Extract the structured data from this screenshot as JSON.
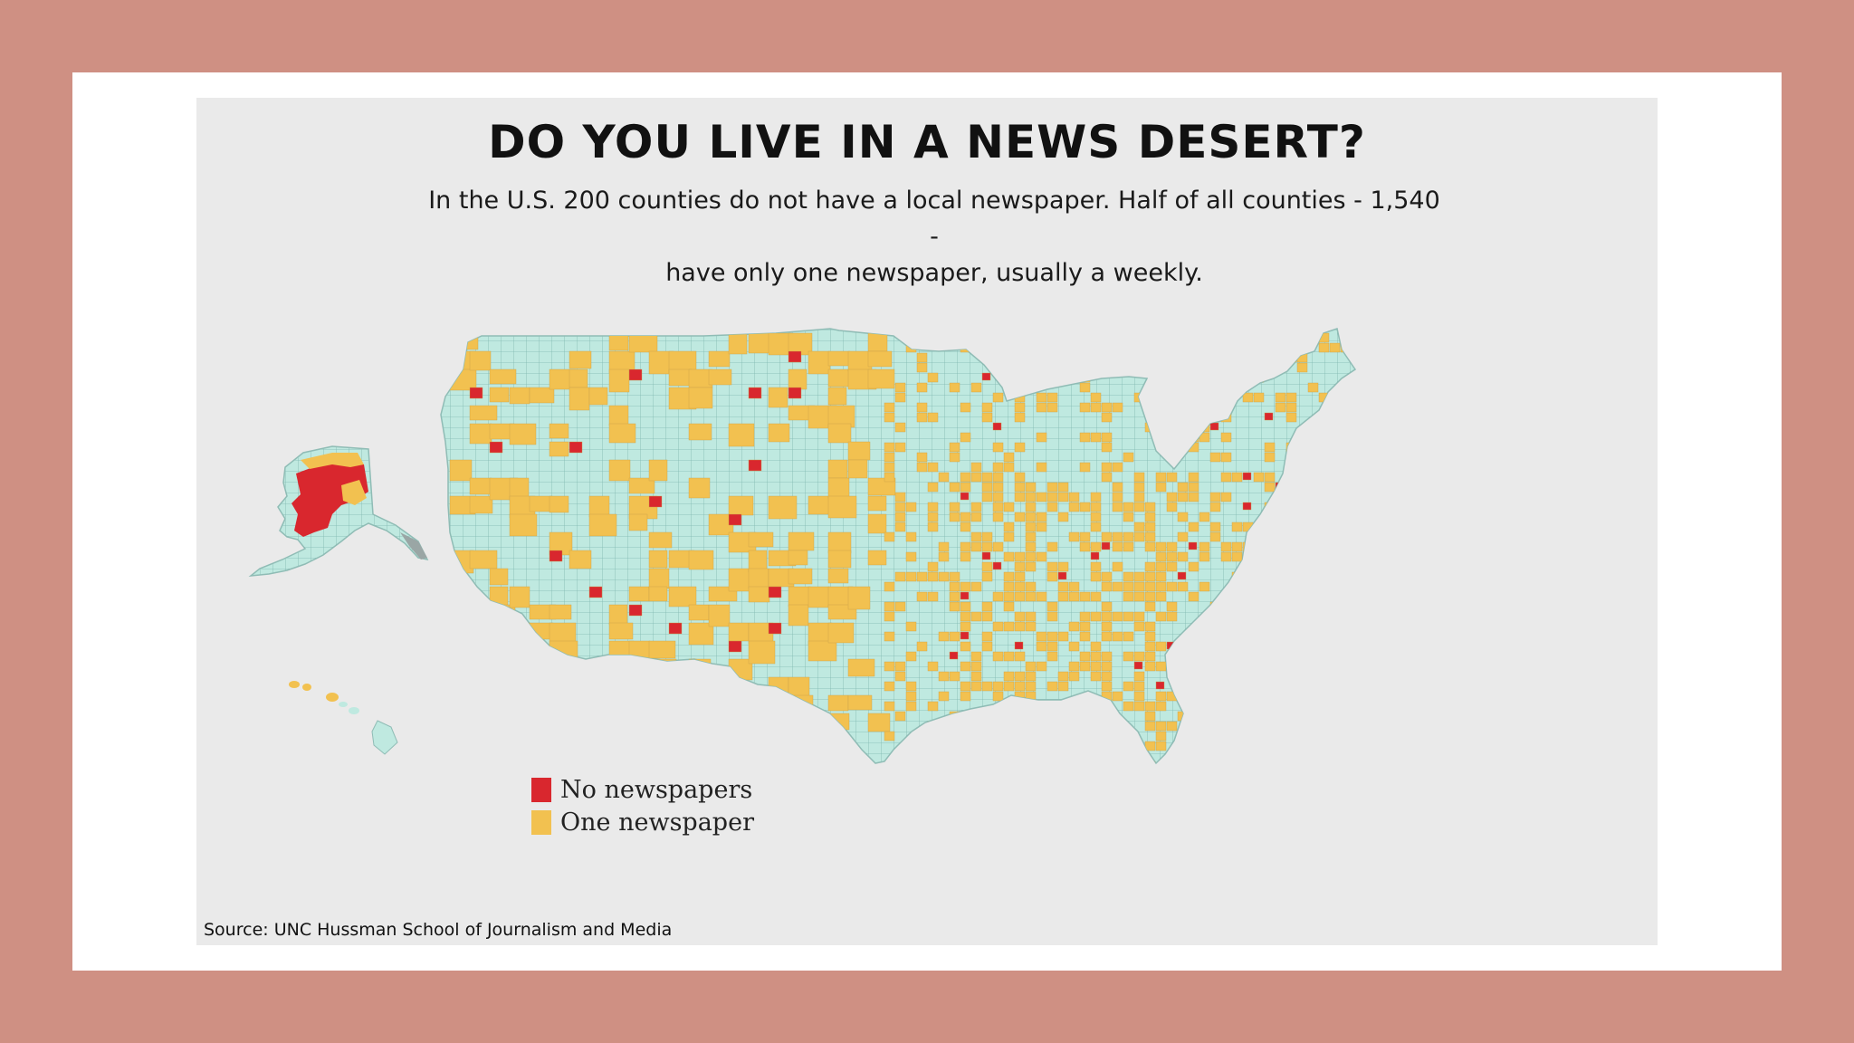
{
  "title": "DO YOU LIVE IN A NEWS DESERT?",
  "subtitle_line1": "In the U.S. 200 counties do not have a local newspaper.  Half of all counties - 1,540 -",
  "subtitle_line2": "have only one newspaper, usually a weekly.",
  "legend": {
    "no_newspapers": "No newspapers",
    "one_newspaper": "One newspaper"
  },
  "source": "Source:  UNC Hussman School of Journalism and Media",
  "colors": {
    "no_newspapers": "#d9272e",
    "one_newspaper": "#f2c150",
    "multiple_newspapers": "#bfe9e0",
    "county_border": "#7fb7b0",
    "background_frame": "#cf9083",
    "panel": "#eaeaea"
  }
}
